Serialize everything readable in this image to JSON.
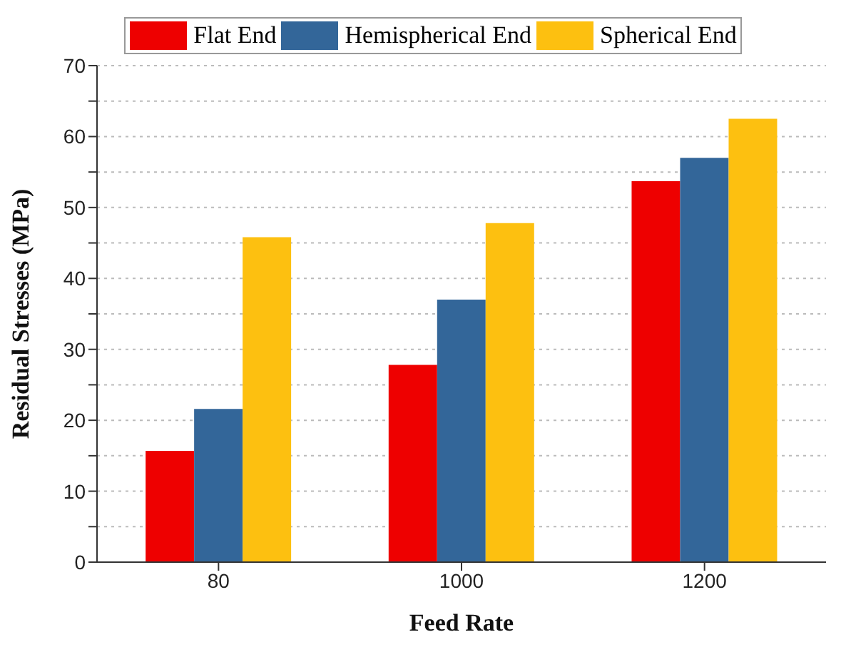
{
  "chart_data": {
    "type": "bar",
    "xlabel": "Feed Rate",
    "ylabel": "Residual Stresses (MPa)",
    "categories": [
      "80",
      "1000",
      "1200"
    ],
    "series": [
      {
        "name": "Flat End",
        "color": "#ee0000",
        "values": [
          15.7,
          27.8,
          53.7
        ]
      },
      {
        "name": "Hemispherical End",
        "color": "#336699",
        "values": [
          21.6,
          37.0,
          57.0
        ]
      },
      {
        "name": "Spherical End",
        "color": "#fdc010",
        "values": [
          45.8,
          47.8,
          62.5
        ]
      }
    ],
    "ylim": [
      0,
      70
    ],
    "yticks": [
      0,
      {
        "value": 5,
        "label": null
      },
      10,
      {
        "value": 15,
        "label": null
      },
      20,
      {
        "value": 25,
        "label": null
      },
      30,
      {
        "value": 35,
        "label": null
      },
      40,
      {
        "value": 45,
        "label": null
      },
      50,
      {
        "value": 55,
        "label": null
      },
      60,
      {
        "value": 65,
        "label": null
      },
      70
    ],
    "grid": "y",
    "legend": "top"
  }
}
